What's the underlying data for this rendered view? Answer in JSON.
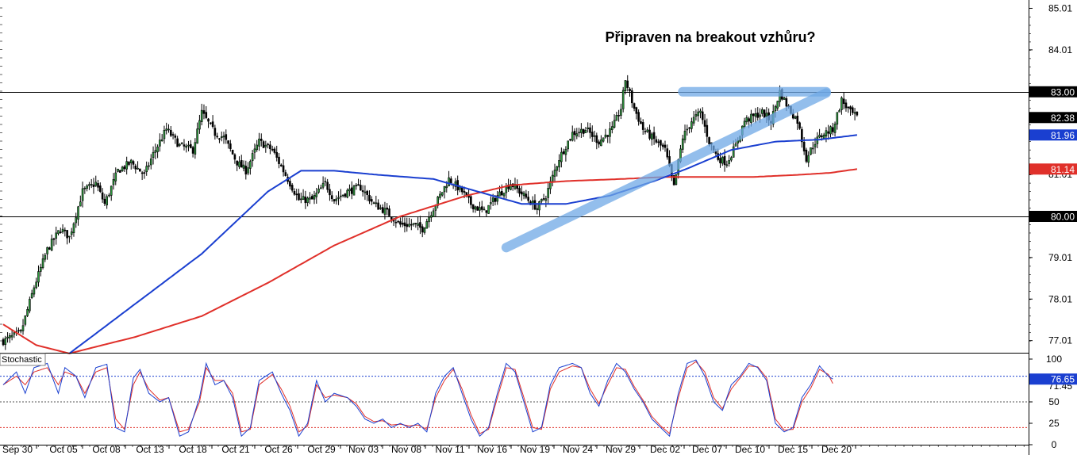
{
  "chart_data": {
    "type": "candlestick",
    "title": "Připraven na breakout vzhůru?",
    "y_ticks": [
      "85.01",
      "84.01",
      "83.00",
      "82.38",
      "81.96",
      "81.14",
      "81.01",
      "80.00",
      "79.01",
      "78.01",
      "77.01"
    ],
    "ylim": [
      76.7,
      85.3
    ],
    "x_labels": [
      "Sep 30",
      "Oct 05",
      "Oct 08",
      "Oct 13",
      "Oct 18",
      "Oct 21",
      "Oct 26",
      "Oct 29",
      "Nov 03",
      "Nov 08",
      "Nov 11",
      "Nov 16",
      "Nov 19",
      "Nov 24",
      "Nov 29",
      "Dec 02",
      "Dec 07",
      "Dec 10",
      "Dec 15",
      "Dec 20"
    ],
    "horizontal_levels": [
      83.0,
      80.0
    ],
    "badges": [
      {
        "label": "83.00",
        "value": 83.0,
        "color": "#000000"
      },
      {
        "label": "82.38",
        "value": 82.38,
        "color": "#000000"
      },
      {
        "label": "81.96",
        "value": 81.96,
        "color": "#1a3fd0"
      },
      {
        "label": "81.14",
        "value": 81.14,
        "color": "#e0302a"
      },
      {
        "label": "80.00",
        "value": 80.0,
        "color": "#000000"
      }
    ],
    "close_anchors": [
      [
        0,
        77.0
      ],
      [
        8,
        77.2
      ],
      [
        14,
        78.3
      ],
      [
        20,
        79.2
      ],
      [
        26,
        79.7
      ],
      [
        30,
        79.5
      ],
      [
        36,
        80.6
      ],
      [
        42,
        80.8
      ],
      [
        46,
        80.3
      ],
      [
        52,
        81.1
      ],
      [
        58,
        81.3
      ],
      [
        64,
        81.0
      ],
      [
        68,
        81.5
      ],
      [
        74,
        82.1
      ],
      [
        80,
        81.7
      ],
      [
        86,
        81.6
      ],
      [
        90,
        82.5
      ],
      [
        96,
        82.0
      ],
      [
        100,
        81.9
      ],
      [
        106,
        81.3
      ],
      [
        110,
        81.1
      ],
      [
        116,
        81.8
      ],
      [
        122,
        81.6
      ],
      [
        128,
        81.0
      ],
      [
        134,
        80.4
      ],
      [
        140,
        80.4
      ],
      [
        146,
        80.8
      ],
      [
        150,
        80.4
      ],
      [
        156,
        80.6
      ],
      [
        162,
        80.7
      ],
      [
        168,
        80.3
      ],
      [
        174,
        80.1
      ],
      [
        180,
        79.8
      ],
      [
        186,
        79.8
      ],
      [
        190,
        79.7
      ],
      [
        196,
        80.3
      ],
      [
        202,
        80.9
      ],
      [
        208,
        80.6
      ],
      [
        212,
        80.3
      ],
      [
        218,
        80.1
      ],
      [
        224,
        80.5
      ],
      [
        230,
        80.8
      ],
      [
        236,
        80.5
      ],
      [
        242,
        80.2
      ],
      [
        246,
        80.5
      ],
      [
        252,
        81.4
      ],
      [
        258,
        82.0
      ],
      [
        264,
        82.1
      ],
      [
        270,
        81.8
      ],
      [
        276,
        82.1
      ],
      [
        280,
        82.6
      ],
      [
        282,
        83.3
      ],
      [
        286,
        82.6
      ],
      [
        290,
        82.1
      ],
      [
        296,
        81.8
      ],
      [
        300,
        81.6
      ],
      [
        304,
        80.7
      ],
      [
        308,
        81.9
      ],
      [
        312,
        82.3
      ],
      [
        316,
        82.5
      ],
      [
        320,
        81.8
      ],
      [
        324,
        81.4
      ],
      [
        328,
        81.3
      ],
      [
        332,
        81.7
      ],
      [
        336,
        82.3
      ],
      [
        340,
        82.4
      ],
      [
        344,
        82.5
      ],
      [
        348,
        82.3
      ],
      [
        352,
        83.0
      ],
      [
        356,
        82.6
      ],
      [
        360,
        82.3
      ],
      [
        364,
        81.4
      ],
      [
        368,
        81.8
      ],
      [
        372,
        82.0
      ],
      [
        376,
        82.1
      ],
      [
        380,
        82.8
      ],
      [
        384,
        82.5
      ],
      [
        387,
        82.38
      ]
    ],
    "series": [
      {
        "name": "",
        "color": "#1a3fd0",
        "points": [
          [
            30,
            76.7
          ],
          [
            60,
            77.9
          ],
          [
            90,
            79.1
          ],
          [
            120,
            80.6
          ],
          [
            135,
            81.1
          ],
          [
            150,
            81.1
          ],
          [
            170,
            81.0
          ],
          [
            195,
            80.9
          ],
          [
            215,
            80.6
          ],
          [
            235,
            80.3
          ],
          [
            255,
            80.3
          ],
          [
            275,
            80.5
          ],
          [
            295,
            80.85
          ],
          [
            310,
            81.15
          ],
          [
            330,
            81.6
          ],
          [
            350,
            81.8
          ],
          [
            370,
            81.85
          ],
          [
            387,
            81.96
          ]
        ]
      },
      {
        "name": "",
        "color": "#e0302a",
        "points": [
          [
            0,
            77.4
          ],
          [
            15,
            76.9
          ],
          [
            30,
            76.7
          ],
          [
            60,
            77.1
          ],
          [
            90,
            77.6
          ],
          [
            120,
            78.4
          ],
          [
            150,
            79.3
          ],
          [
            180,
            80.0
          ],
          [
            210,
            80.5
          ],
          [
            230,
            80.75
          ],
          [
            255,
            80.85
          ],
          [
            280,
            80.9
          ],
          [
            300,
            80.95
          ],
          [
            320,
            80.95
          ],
          [
            340,
            80.95
          ],
          [
            360,
            81.0
          ],
          [
            375,
            81.05
          ],
          [
            387,
            81.14
          ]
        ]
      }
    ],
    "annotations": [
      {
        "type": "trendline",
        "points": [
          [
            228,
            79.25
          ],
          [
            373,
            82.97
          ]
        ],
        "color": "#6fa8e6"
      },
      {
        "type": "resistance",
        "points": [
          [
            308,
            83.0
          ],
          [
            373,
            83.0
          ]
        ],
        "color": "#6fa8e6"
      }
    ],
    "stochastic": {
      "label": "Stochastic",
      "ylim": [
        0,
        100
      ],
      "y_ticks": [
        "100",
        "76.65",
        "50",
        "25",
        "0"
      ],
      "hidden_tick": "71.45",
      "levels": [
        80,
        50,
        20
      ],
      "current": {
        "label": "76.65",
        "color": "#1a3fd0"
      },
      "k_anchors": [
        [
          0,
          70
        ],
        [
          6,
          85
        ],
        [
          10,
          60
        ],
        [
          14,
          90
        ],
        [
          20,
          95
        ],
        [
          25,
          60
        ],
        [
          28,
          90
        ],
        [
          33,
          80
        ],
        [
          37,
          55
        ],
        [
          42,
          90
        ],
        [
          47,
          94
        ],
        [
          51,
          20
        ],
        [
          55,
          15
        ],
        [
          59,
          78
        ],
        [
          62,
          88
        ],
        [
          66,
          60
        ],
        [
          71,
          50
        ],
        [
          75,
          55
        ],
        [
          80,
          10
        ],
        [
          84,
          15
        ],
        [
          89,
          55
        ],
        [
          92,
          95
        ],
        [
          96,
          70
        ],
        [
          100,
          75
        ],
        [
          104,
          55
        ],
        [
          108,
          10
        ],
        [
          112,
          20
        ],
        [
          116,
          75
        ],
        [
          122,
          85
        ],
        [
          126,
          60
        ],
        [
          130,
          40
        ],
        [
          134,
          10
        ],
        [
          138,
          25
        ],
        [
          142,
          75
        ],
        [
          146,
          50
        ],
        [
          150,
          60
        ],
        [
          156,
          55
        ],
        [
          160,
          45
        ],
        [
          164,
          30
        ],
        [
          168,
          25
        ],
        [
          172,
          30
        ],
        [
          176,
          20
        ],
        [
          180,
          25
        ],
        [
          184,
          20
        ],
        [
          188,
          25
        ],
        [
          192,
          15
        ],
        [
          196,
          60
        ],
        [
          200,
          80
        ],
        [
          204,
          90
        ],
        [
          208,
          60
        ],
        [
          212,
          30
        ],
        [
          216,
          10
        ],
        [
          220,
          20
        ],
        [
          224,
          60
        ],
        [
          228,
          95
        ],
        [
          232,
          85
        ],
        [
          236,
          50
        ],
        [
          240,
          15
        ],
        [
          244,
          20
        ],
        [
          248,
          70
        ],
        [
          252,
          90
        ],
        [
          258,
          95
        ],
        [
          262,
          90
        ],
        [
          266,
          60
        ],
        [
          270,
          45
        ],
        [
          274,
          75
        ],
        [
          278,
          95
        ],
        [
          282,
          85
        ],
        [
          286,
          65
        ],
        [
          290,
          50
        ],
        [
          294,
          30
        ],
        [
          298,
          20
        ],
        [
          302,
          10
        ],
        [
          306,
          60
        ],
        [
          310,
          95
        ],
        [
          314,
          99
        ],
        [
          318,
          80
        ],
        [
          322,
          50
        ],
        [
          326,
          40
        ],
        [
          330,
          70
        ],
        [
          334,
          80
        ],
        [
          338,
          95
        ],
        [
          342,
          90
        ],
        [
          346,
          75
        ],
        [
          350,
          25
        ],
        [
          354,
          15
        ],
        [
          358,
          20
        ],
        [
          362,
          55
        ],
        [
          366,
          70
        ],
        [
          370,
          92
        ],
        [
          374,
          80
        ],
        [
          376,
          76.65
        ]
      ],
      "d_anchors": [
        [
          0,
          70
        ],
        [
          6,
          80
        ],
        [
          10,
          70
        ],
        [
          14,
          85
        ],
        [
          20,
          90
        ],
        [
          25,
          70
        ],
        [
          28,
          85
        ],
        [
          33,
          80
        ],
        [
          37,
          60
        ],
        [
          42,
          85
        ],
        [
          47,
          90
        ],
        [
          51,
          30
        ],
        [
          55,
          18
        ],
        [
          59,
          70
        ],
        [
          62,
          85
        ],
        [
          66,
          65
        ],
        [
          71,
          52
        ],
        [
          75,
          55
        ],
        [
          80,
          15
        ],
        [
          84,
          18
        ],
        [
          89,
          50
        ],
        [
          92,
          90
        ],
        [
          96,
          75
        ],
        [
          100,
          75
        ],
        [
          104,
          60
        ],
        [
          108,
          15
        ],
        [
          112,
          18
        ],
        [
          116,
          70
        ],
        [
          122,
          82
        ],
        [
          126,
          65
        ],
        [
          130,
          45
        ],
        [
          134,
          15
        ],
        [
          138,
          22
        ],
        [
          142,
          70
        ],
        [
          146,
          55
        ],
        [
          150,
          58
        ],
        [
          156,
          55
        ],
        [
          160,
          48
        ],
        [
          164,
          33
        ],
        [
          168,
          27
        ],
        [
          172,
          28
        ],
        [
          176,
          23
        ],
        [
          180,
          24
        ],
        [
          184,
          22
        ],
        [
          188,
          23
        ],
        [
          192,
          18
        ],
        [
          196,
          55
        ],
        [
          200,
          75
        ],
        [
          204,
          88
        ],
        [
          208,
          65
        ],
        [
          212,
          35
        ],
        [
          216,
          13
        ],
        [
          220,
          18
        ],
        [
          224,
          55
        ],
        [
          228,
          90
        ],
        [
          232,
          88
        ],
        [
          236,
          55
        ],
        [
          240,
          20
        ],
        [
          244,
          18
        ],
        [
          248,
          65
        ],
        [
          252,
          85
        ],
        [
          258,
          92
        ],
        [
          262,
          90
        ],
        [
          266,
          65
        ],
        [
          270,
          48
        ],
        [
          274,
          70
        ],
        [
          278,
          90
        ],
        [
          282,
          88
        ],
        [
          286,
          68
        ],
        [
          290,
          52
        ],
        [
          294,
          33
        ],
        [
          298,
          22
        ],
        [
          302,
          13
        ],
        [
          306,
          55
        ],
        [
          310,
          90
        ],
        [
          314,
          97
        ],
        [
          318,
          85
        ],
        [
          322,
          55
        ],
        [
          326,
          42
        ],
        [
          330,
          65
        ],
        [
          334,
          78
        ],
        [
          338,
          92
        ],
        [
          342,
          91
        ],
        [
          346,
          78
        ],
        [
          350,
          30
        ],
        [
          354,
          17
        ],
        [
          358,
          18
        ],
        [
          362,
          50
        ],
        [
          366,
          66
        ],
        [
          370,
          88
        ],
        [
          374,
          82
        ],
        [
          376,
          71.45
        ]
      ]
    }
  }
}
